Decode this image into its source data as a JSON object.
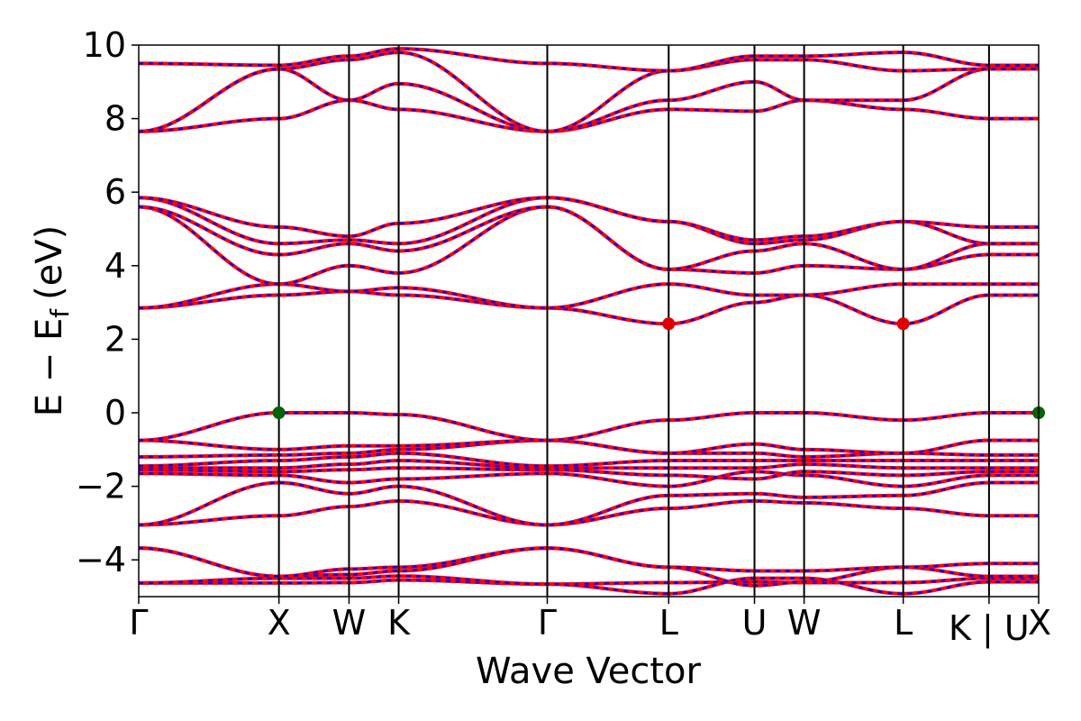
{
  "chart_data": {
    "type": "line",
    "title": "",
    "xlabel": "Wave Vector",
    "ylabel": "E − E",
    "ylabel_subscript": "f",
    "ylabel_unit": "(eV)",
    "ylim": [
      -5,
      10
    ],
    "yticks": [
      -4,
      -2,
      0,
      2,
      4,
      6,
      8,
      10
    ],
    "ytick_labels": [
      "−4",
      "−2",
      "0",
      "2",
      "4",
      "6",
      "8",
      "10"
    ],
    "kpath": [
      {
        "label": "Γ",
        "x": 0.0
      },
      {
        "label": "X",
        "x": 1.0
      },
      {
        "label": "W",
        "x": 1.5
      },
      {
        "label": "K",
        "x": 1.854
      },
      {
        "label": "Γ",
        "x": 2.914
      },
      {
        "label": "L",
        "x": 3.78
      },
      {
        "label": "U",
        "x": 4.392
      },
      {
        "label": "W",
        "x": 4.746
      },
      {
        "label": "L",
        "x": 5.453
      },
      {
        "label": "K | U",
        "x": 6.065
      },
      {
        "label": "X",
        "x": 6.419
      }
    ],
    "xlim": [
      0,
      6.419
    ],
    "grid": false,
    "legend": "none",
    "line_colors": {
      "primary": "#ff0000",
      "secondary": "#0000ff"
    },
    "vbm": {
      "energy": 0.0,
      "x": [
        1.0,
        6.419
      ],
      "color": "#006400"
    },
    "cbm": {
      "energy": 2.42,
      "x": [
        3.78,
        5.453
      ],
      "color": "#e00000"
    },
    "series": [
      {
        "values": [
          -4.63,
          -4.63,
          -4.62,
          -4.55,
          -4.66,
          -4.62,
          -4.6,
          -4.62,
          -4.62,
          -4.5,
          -4.5
        ]
      },
      {
        "values": [
          -4.63,
          -4.5,
          -4.5,
          -4.44,
          -4.66,
          -4.92,
          -4.5,
          -4.5,
          -4.92,
          -4.6,
          -4.6
        ]
      },
      {
        "values": [
          -3.68,
          -4.45,
          -4.4,
          -4.3,
          -3.68,
          -4.2,
          -4.7,
          -4.6,
          -4.2,
          -4.45,
          -4.45
        ]
      },
      {
        "values": [
          -3.68,
          -4.45,
          -4.25,
          -4.2,
          -3.68,
          -4.2,
          -4.3,
          -4.3,
          -4.2,
          -4.1,
          -4.1
        ]
      },
      {
        "values": [
          -3.05,
          -2.8,
          -2.55,
          -2.4,
          -3.05,
          -2.6,
          -2.4,
          -2.45,
          -2.6,
          -2.8,
          -2.8
        ]
      },
      {
        "values": [
          -3.05,
          -1.9,
          -2.2,
          -2.0,
          -3.05,
          -2.25,
          -2.2,
          -2.3,
          -2.25,
          -1.9,
          -1.9
        ]
      },
      {
        "values": [
          -1.65,
          -1.7,
          -1.9,
          -1.8,
          -1.65,
          -2.0,
          -1.6,
          -1.7,
          -2.0,
          -1.7,
          -1.7
        ]
      },
      {
        "values": [
          -1.55,
          -1.6,
          -1.55,
          -1.5,
          -1.55,
          -1.7,
          -1.8,
          -1.6,
          -1.7,
          -1.6,
          -1.6
        ]
      },
      {
        "values": [
          -1.5,
          -1.5,
          -1.4,
          -1.3,
          -1.5,
          -1.5,
          -1.5,
          -1.4,
          -1.5,
          -1.5,
          -1.5
        ]
      },
      {
        "values": [
          -1.45,
          -1.3,
          -1.2,
          -1.1,
          -1.45,
          -1.3,
          -1.3,
          -1.3,
          -1.3,
          -1.3,
          -1.3
        ]
      },
      {
        "values": [
          -1.2,
          -1.15,
          -1.1,
          -1.0,
          -0.75,
          -1.1,
          -1.1,
          -1.2,
          -1.1,
          -1.15,
          -1.15
        ]
      },
      {
        "values": [
          -0.75,
          -1.0,
          -0.9,
          -0.9,
          -0.75,
          -1.1,
          -0.85,
          -1.0,
          -1.1,
          -0.75,
          -0.75
        ]
      },
      {
        "values": [
          -0.75,
          0.0,
          0.0,
          -0.05,
          -0.75,
          -0.2,
          0.0,
          0.0,
          -0.2,
          0.0,
          0.0
        ]
      },
      {
        "values": [
          2.85,
          3.2,
          3.3,
          3.2,
          2.85,
          2.42,
          3.0,
          3.2,
          2.42,
          3.2,
          3.2
        ]
      },
      {
        "values": [
          2.85,
          3.5,
          3.3,
          3.4,
          2.85,
          3.5,
          3.2,
          3.2,
          3.5,
          3.5,
          3.5
        ]
      },
      {
        "values": [
          5.6,
          3.5,
          4.0,
          3.8,
          5.6,
          3.9,
          3.8,
          4.0,
          3.9,
          4.3,
          4.3
        ]
      },
      {
        "values": [
          5.6,
          4.3,
          4.6,
          4.4,
          5.6,
          3.9,
          4.4,
          4.6,
          3.9,
          4.6,
          4.6
        ]
      },
      {
        "values": [
          5.85,
          4.6,
          4.7,
          4.6,
          5.85,
          5.2,
          4.6,
          4.7,
          5.2,
          4.6,
          4.6
        ]
      },
      {
        "values": [
          5.85,
          5.05,
          4.8,
          5.15,
          5.85,
          5.2,
          4.7,
          4.8,
          5.2,
          5.05,
          5.05
        ]
      },
      {
        "values": [
          7.65,
          8.0,
          8.5,
          8.25,
          7.65,
          8.25,
          8.2,
          8.5,
          8.25,
          8.0,
          8.0
        ]
      },
      {
        "values": [
          7.65,
          9.35,
          8.5,
          8.95,
          7.65,
          8.5,
          9.0,
          8.5,
          8.5,
          9.35,
          9.35
        ]
      },
      {
        "values": [
          7.65,
          9.35,
          9.6,
          9.8,
          7.65,
          9.3,
          9.6,
          9.6,
          9.3,
          9.35,
          9.35
        ]
      },
      {
        "values": [
          9.5,
          9.45,
          9.7,
          9.9,
          9.5,
          9.3,
          9.7,
          9.7,
          9.8,
          9.45,
          9.45
        ]
      }
    ]
  }
}
